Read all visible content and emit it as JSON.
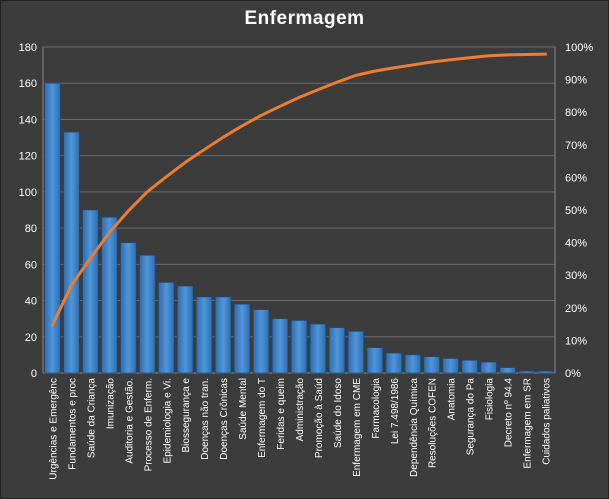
{
  "chart_data": {
    "type": "bar",
    "title": "Enfermagem",
    "categories": [
      "Urgências e Emergênc",
      "Fundamentos e proc",
      "Saúde da Criança",
      "Imunização",
      "Auditoria e Gestão.",
      "Processo de Enferm.",
      "Epidemiologia e Vi.",
      "Biossegurança e",
      "Doenças não tran.",
      "Doenças Crônicas",
      "Saúde Mental",
      "Enfermagem do T",
      "Feridas e queim",
      "Administração",
      "Promoção à Saúd",
      "Saúde do Idoso",
      "Enfermagem em CME",
      "Farmacologia",
      "Lei 7.498/1986",
      "Dependência Química",
      "Resoluções COFEN",
      "Anatomia",
      "Segurança do Pa",
      "Fisiologia",
      "Decreto nº 94.4",
      "Enfermagem em SR",
      "Cuidados paliativos"
    ],
    "series": [
      {
        "type": "bar",
        "axis": "left",
        "color": "#4f96d9",
        "values": [
          160,
          133,
          90,
          86,
          72,
          65,
          50,
          48,
          42,
          42,
          38,
          35,
          30,
          29,
          27,
          25,
          23,
          14,
          11,
          10,
          9,
          8,
          7,
          6,
          3,
          1,
          1
        ]
      },
      {
        "type": "line",
        "axis": "right",
        "color": "#ed7d31",
        "values": [
          0.147,
          0.269,
          0.352,
          0.431,
          0.497,
          0.556,
          0.602,
          0.646,
          0.685,
          0.723,
          0.758,
          0.79,
          0.818,
          0.845,
          0.869,
          0.892,
          0.913,
          0.926,
          0.936,
          0.945,
          0.954,
          0.961,
          0.967,
          0.973,
          0.976,
          0.977,
          0.978
        ]
      }
    ],
    "ylim": [
      0,
      180
    ],
    "yticks": [
      "0",
      "20",
      "40",
      "60",
      "80",
      "100",
      "120",
      "140",
      "160",
      "180"
    ],
    "y2lim": [
      0,
      1
    ],
    "y2ticks": [
      "0%",
      "10%",
      "20%",
      "30%",
      "40%",
      "50%",
      "60%",
      "70%",
      "80%",
      "90%",
      "100%"
    ],
    "grid": true,
    "legend": "none"
  }
}
